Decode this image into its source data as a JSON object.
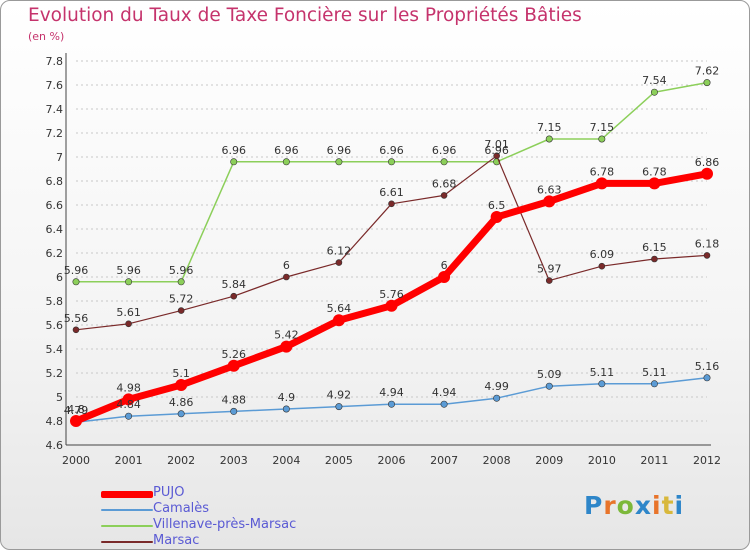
{
  "title": "Evolution du Taux de Taxe Foncière sur les Propriétés Bâties",
  "subtitle": "(en %)",
  "logo": {
    "letters": [
      "P",
      "r",
      "o",
      "x",
      "i",
      "t",
      "i"
    ],
    "colors": [
      "#2e86c9",
      "#e8742a",
      "#7cb83a",
      "#2e86c9",
      "#e8742a",
      "#d8b83c",
      "#2e86c9"
    ]
  },
  "chart_data": {
    "type": "line",
    "x": [
      "2000",
      "2001",
      "2002",
      "2003",
      "2004",
      "2005",
      "2006",
      "2007",
      "2008",
      "2009",
      "2010",
      "2011",
      "2012"
    ],
    "ylim": [
      4.6,
      7.8
    ],
    "yticks": [
      "4.6",
      "4.8",
      "5",
      "5.2",
      "5.4",
      "5.6",
      "5.8",
      "6",
      "6.2",
      "6.4",
      "6.6",
      "6.8",
      "7",
      "7.2",
      "7.4",
      "7.6",
      "7.8"
    ],
    "grid": "horizontal dashed",
    "legend_position": "bottom-left",
    "series": [
      {
        "name": "Camalès",
        "color": "#5b9bd5",
        "values": [
          4.79,
          4.84,
          4.86,
          4.88,
          4.9,
          4.92,
          4.94,
          4.94,
          4.99,
          5.09,
          5.11,
          5.11,
          5.16
        ],
        "labels": [
          "4.79",
          "4.84",
          "4.86",
          "4.88",
          "4.9",
          "4.92",
          "4.94",
          "4.94",
          "4.99",
          "5.09",
          "5.11",
          "5.11",
          "5.16"
        ]
      },
      {
        "name": "Villenave-près-Marsac",
        "color": "#8ccf5a",
        "values": [
          5.96,
          5.96,
          5.96,
          6.96,
          6.96,
          6.96,
          6.96,
          6.96,
          6.96,
          7.15,
          7.15,
          7.54,
          7.62
        ],
        "labels": [
          "5.96",
          "5.96",
          "5.96",
          "6.96",
          "6.96",
          "6.96",
          "6.96",
          "6.96",
          "6.96",
          "7.15",
          "7.15",
          "7.54",
          "7.62"
        ]
      },
      {
        "name": "Marsac",
        "color": "#7a2a2a",
        "values": [
          5.56,
          5.61,
          5.72,
          5.84,
          6.0,
          6.12,
          6.61,
          6.68,
          7.01,
          5.97,
          6.09,
          6.15,
          6.18
        ],
        "labels": [
          "5.56",
          "5.61",
          "5.72",
          "5.84",
          "6",
          "6.12",
          "6.61",
          "6.68",
          "7.01",
          "5.97",
          "6.09",
          "6.15",
          "6.18"
        ]
      },
      {
        "name": "PUJO",
        "color": "#ff0000",
        "values": [
          4.8,
          4.98,
          5.1,
          5.26,
          5.42,
          5.64,
          5.76,
          6.0,
          6.5,
          6.63,
          6.78,
          6.78,
          6.86
        ],
        "labels": [
          "4.8",
          "4.98",
          "5.1",
          "5.26",
          "5.42",
          "5.64",
          "5.76",
          "6",
          "6.5",
          "6.63",
          "6.78",
          "6.78",
          "6.86"
        ]
      }
    ],
    "legend_order": [
      "PUJO",
      "Camalès",
      "Villenave-près-Marsac",
      "Marsac"
    ]
  }
}
